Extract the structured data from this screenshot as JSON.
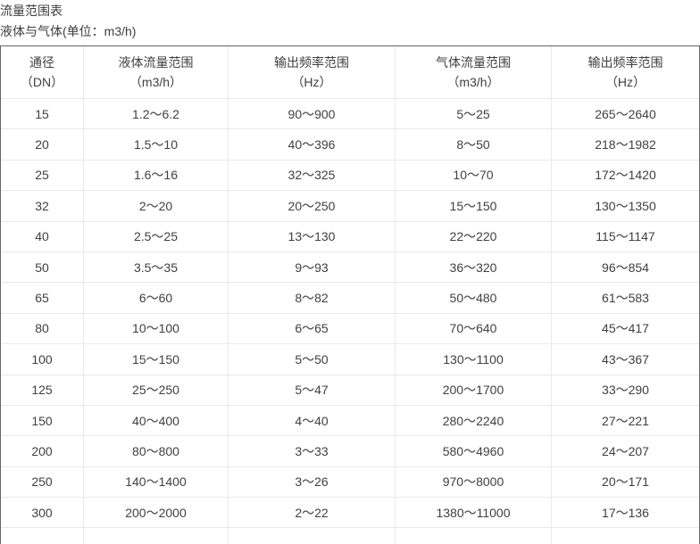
{
  "page": {
    "title": "流量范围表",
    "subtitle": "液体与气体(单位：m3/h)"
  },
  "table": {
    "columns": [
      {
        "line1": "通径",
        "line2": "（DN）"
      },
      {
        "line1": "液体流量范围",
        "line2": "（m3/h）"
      },
      {
        "line1": "输出频率范围",
        "line2": "（Hz）"
      },
      {
        "line1": "气体流量范围",
        "line2": "（m3/h）"
      },
      {
        "line1": "输出频率范围",
        "line2": "（Hz）"
      }
    ],
    "rows": [
      [
        "15",
        "1.2～6.2",
        "90～900",
        "5～25",
        "265～2640"
      ],
      [
        "20",
        "1.5～10",
        "40～396",
        "8～50",
        "218～1982"
      ],
      [
        "25",
        "1.6～16",
        "32～325",
        "10～70",
        "172～1420"
      ],
      [
        "32",
        "2～20",
        "20～250",
        "15～150",
        "130～1350"
      ],
      [
        "40",
        "2.5～25",
        "13～130",
        "22～220",
        "115～1147"
      ],
      [
        "50",
        "3.5～35",
        "9～93",
        "36～320",
        "96～854"
      ],
      [
        "65",
        "6～60",
        "8～82",
        "50～480",
        "61～583"
      ],
      [
        "80",
        "10～100",
        "6～65",
        "70～640",
        "45～417"
      ],
      [
        "100",
        "15～150",
        "5～50",
        "130～1100",
        "43～367"
      ],
      [
        "125",
        "25～250",
        "5～47",
        "200～1700",
        "33～290"
      ],
      [
        "150",
        "40～400",
        "4～40",
        "280～2240",
        "27～221"
      ],
      [
        "200",
        "80～800",
        "3～33",
        "580～4960",
        "24～207"
      ],
      [
        "250",
        "140～1400",
        "3～26",
        "970～8000",
        "20～171"
      ],
      [
        "300",
        "200～2000",
        "2～22",
        "1380～11000",
        "17～136"
      ]
    ]
  },
  "colors": {
    "text": "#404040",
    "outer_border": "#666666",
    "inner_border": "#e9e9e9",
    "background": "#ffffff"
  }
}
